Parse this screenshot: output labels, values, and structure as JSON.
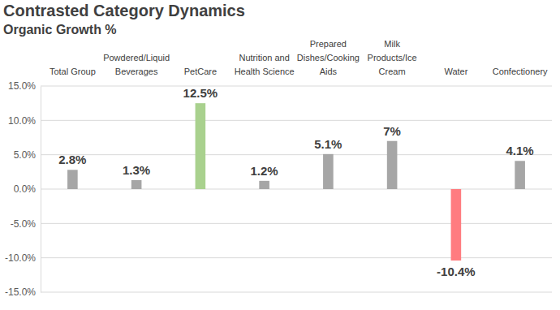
{
  "chart_data": {
    "type": "bar",
    "title": "Contrasted Category Dynamics",
    "subtitle": "Organic Growth %",
    "categories": [
      "Total Group",
      "Powdered/Liquid Beverages",
      "PetCare",
      "Nutrition and Health Science",
      "Prepared Dishes/Cooking Aids",
      "Milk Products/Ice Cream",
      "Water",
      "Confectionery"
    ],
    "values": [
      2.8,
      1.3,
      12.5,
      1.2,
      5.1,
      7,
      -10.4,
      4.1
    ],
    "value_labels": [
      "2.8%",
      "1.3%",
      "12.5%",
      "1.2%",
      "5.1%",
      "7%",
      "-10.4%",
      "4.1%"
    ],
    "colors": [
      "#a6a6a6",
      "#a6a6a6",
      "#a9d18e",
      "#a6a6a6",
      "#a6a6a6",
      "#a6a6a6",
      "#ff7c80",
      "#a6a6a6"
    ],
    "ylim": [
      -15,
      15
    ],
    "yticks": [
      {
        "value": -15,
        "label": "-15.0%"
      },
      {
        "value": -10,
        "label": "-10.0%"
      },
      {
        "value": -5,
        "label": "-5.0%"
      },
      {
        "value": 0,
        "label": "0.0%"
      },
      {
        "value": 5,
        "label": "5.0%"
      },
      {
        "value": 10,
        "label": "10.0%"
      },
      {
        "value": 15,
        "label": "15.0%"
      }
    ],
    "grid": true,
    "data_labels": true
  }
}
